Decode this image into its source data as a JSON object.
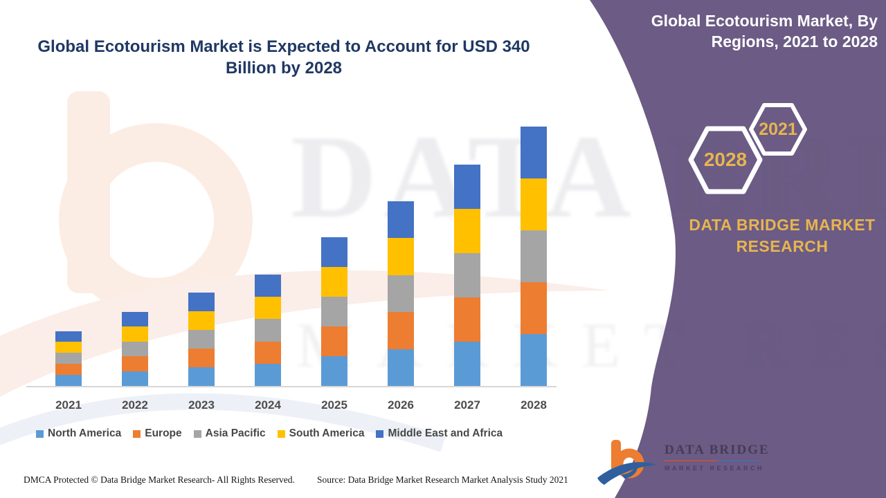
{
  "page": {
    "title_lines": [
      "Global Ecotourism Market is Expected to Account for USD 340",
      "Billion by 2028"
    ]
  },
  "side_panel": {
    "title_lines": [
      "Global Ecotourism Market, By",
      "Regions, 2021 to 2028"
    ],
    "hexagon_labels": [
      "2028",
      "2021"
    ],
    "brand_lines": [
      "DATA BRIDGE MARKET",
      "RESEARCH"
    ]
  },
  "logo": {
    "name": "DATA BRIDGE",
    "subtitle": "MARKET RESEARCH"
  },
  "watermark": {
    "line1": "DATA BRIDGE",
    "line2": "MARKET RESEARCH"
  },
  "footer": {
    "dmca": "DMCA Protected © Data Bridge Market Research- All Rights Reserved.",
    "source": "Source: Data Bridge Market Research Market Analysis Study 2021"
  },
  "colors": {
    "panel_purple": "#6B5B85",
    "gold": "#E7B54E",
    "title_blue": "#1F3864",
    "axis_gray": "#D6D6D6",
    "label_gray": "#4D4D4D"
  },
  "chart_data": {
    "type": "bar",
    "stacked": true,
    "title": "Global Ecotourism Market is Expected to Account for USD 340 Billion by 2028",
    "panel_title": "Global Ecotourism Market, By Regions, 2021 to 2028",
    "unit": "USD Billion (estimated; 2028 total = 340)",
    "categories": [
      "2021",
      "2022",
      "2023",
      "2024",
      "2025",
      "2026",
      "2027",
      "2028"
    ],
    "series": [
      {
        "name": "North America",
        "color": "#5B9BD5",
        "values": [
          14.4,
          19.4,
          24.4,
          29.2,
          39,
          48.4,
          58,
          68
        ]
      },
      {
        "name": "Europe",
        "color": "#ED7D31",
        "values": [
          14.4,
          19.4,
          24.4,
          29.2,
          39,
          48.4,
          58,
          68
        ]
      },
      {
        "name": "Asia Pacific",
        "color": "#A5A5A5",
        "values": [
          14.4,
          19.4,
          24.4,
          29.2,
          39,
          48.4,
          58,
          68
        ]
      },
      {
        "name": "South America",
        "color": "#FFC000",
        "values": [
          14.4,
          19.4,
          24.4,
          29.2,
          39,
          48.4,
          58,
          68
        ]
      },
      {
        "name": "Middle East and Africa",
        "color": "#4472C4",
        "values": [
          14.4,
          19.4,
          24.4,
          29.2,
          39,
          48.4,
          58,
          68
        ]
      }
    ],
    "totals": [
      72,
      97,
      122,
      146,
      195,
      242,
      290,
      340
    ],
    "ylim": [
      0,
      380
    ],
    "gridlines": false,
    "y_axis_visible": false,
    "legend_position": "bottom"
  }
}
